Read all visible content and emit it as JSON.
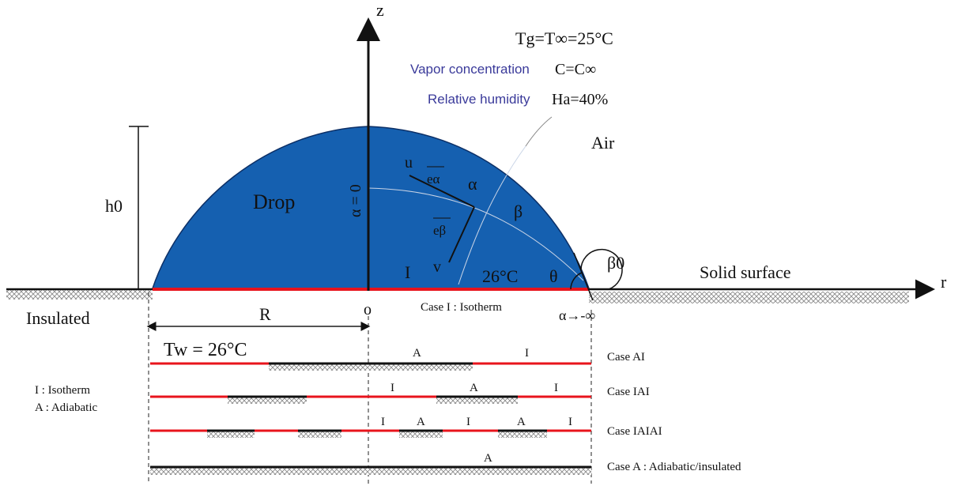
{
  "colors": {
    "drop": "#1560b0",
    "red_line": "#e8141c",
    "black": "#111111",
    "hatch": "#9a9a9a",
    "blue_text": "#3a3a9a"
  },
  "axis": {
    "z_label": "z",
    "r_label": "r",
    "origin_label": "o"
  },
  "conditions": {
    "temp_line": "Tg=T∞=25°C",
    "vapor_label": "Vapor concentration",
    "vapor_value": "C=C∞",
    "humidity_label": "Relative humidity",
    "humidity_value": "Ha=40%"
  },
  "drop": {
    "label": "Drop",
    "alpha_zero": "α = 0",
    "u": "u",
    "e_alpha": "eα",
    "alpha": "α",
    "beta": "β",
    "e_beta": "eβ",
    "v": "v",
    "I": "I",
    "temp": "26°C",
    "theta": "θ",
    "beta0": "β0"
  },
  "labels": {
    "air": "Air",
    "h0": "h0",
    "solid_surface": "Solid surface",
    "insulated": "Insulated",
    "R": "R",
    "case1": "Case I : Isotherm",
    "alpha_inf": "α→-∞",
    "tw": "Tw = 26°C"
  },
  "legend": {
    "I_line": "I :  Isotherm",
    "A_line": "A : Adiabatic"
  },
  "cases": [
    {
      "name": "Case AI",
      "marks": [
        "A",
        "I"
      ]
    },
    {
      "name": "Case IAI",
      "marks": [
        "I",
        "A",
        "I"
      ]
    },
    {
      "name": "Case IAIAI",
      "marks": [
        "I",
        "A",
        "I",
        "A",
        "I"
      ]
    },
    {
      "name": "Case A : Adiabatic/insulated",
      "marks": [
        "A"
      ]
    }
  ]
}
